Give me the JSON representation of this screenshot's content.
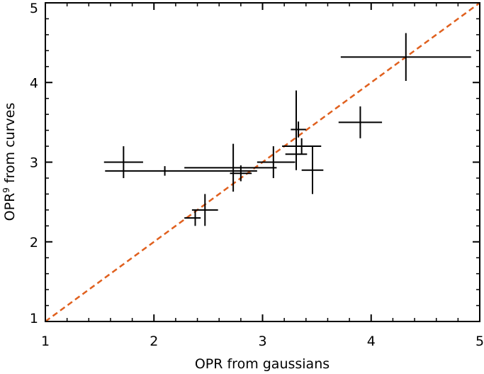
{
  "chart_data": {
    "type": "scatter",
    "title": "",
    "xlabel": "OPR from gaussians",
    "ylabel": "OPR",
    "ylabel_sup": "9",
    "ylabel_rest": " from curves",
    "xlim": [
      1,
      5
    ],
    "ylim": [
      1,
      5
    ],
    "xticks": [
      "1",
      "2",
      "3",
      "4",
      "5"
    ],
    "yticks": [
      "1",
      "2",
      "3",
      "4",
      "5"
    ],
    "grid": false,
    "reference_line": {
      "x": [
        1,
        5
      ],
      "y": [
        1,
        5
      ],
      "style": "dashed",
      "color": "#e0601e"
    },
    "series": [
      {
        "color": "#000000",
        "points": [
          {
            "x": 1.72,
            "y": 3.0,
            "xerr": [
              0.18,
              0.18
            ],
            "yerr": [
              0.2,
              0.2
            ]
          },
          {
            "x": 2.1,
            "y": 2.89,
            "xerr": [
              0.55,
              0.85
            ],
            "yerr": [
              0.06,
              0.06
            ]
          },
          {
            "x": 2.38,
            "y": 2.3,
            "xerr": [
              0.1,
              0.05
            ],
            "yerr": [
              0.1,
              0.1
            ]
          },
          {
            "x": 2.47,
            "y": 2.4,
            "xerr": [
              0.12,
              0.12
            ],
            "yerr": [
              0.2,
              0.2
            ]
          },
          {
            "x": 2.73,
            "y": 2.93,
            "xerr": [
              0.45,
              0.4
            ],
            "yerr": [
              0.3,
              0.3
            ]
          },
          {
            "x": 2.8,
            "y": 2.86,
            "xerr": [
              0.1,
              0.1
            ],
            "yerr": [
              0.1,
              0.1
            ]
          },
          {
            "x": 3.1,
            "y": 3.0,
            "xerr": [
              0.15,
              0.2
            ],
            "yerr": [
              0.2,
              0.2
            ]
          },
          {
            "x": 3.31,
            "y": 3.1,
            "xerr": [
              0.1,
              0.1
            ],
            "yerr": [
              0.2,
              0.8
            ]
          },
          {
            "x": 3.33,
            "y": 3.41,
            "xerr": [
              0.07,
              0.07
            ],
            "yerr": [
              0.1,
              0.1
            ]
          },
          {
            "x": 3.36,
            "y": 3.2,
            "xerr": [
              0.18,
              0.18
            ],
            "yerr": [
              0.1,
              0.1
            ]
          },
          {
            "x": 3.46,
            "y": 2.9,
            "xerr": [
              0.1,
              0.1
            ],
            "yerr": [
              0.3,
              0.3
            ]
          },
          {
            "x": 3.9,
            "y": 3.5,
            "xerr": [
              0.2,
              0.2
            ],
            "yerr": [
              0.2,
              0.2
            ]
          },
          {
            "x": 4.32,
            "y": 4.32,
            "xerr": [
              0.6,
              0.6
            ],
            "yerr": [
              0.3,
              0.3
            ]
          }
        ]
      }
    ]
  }
}
